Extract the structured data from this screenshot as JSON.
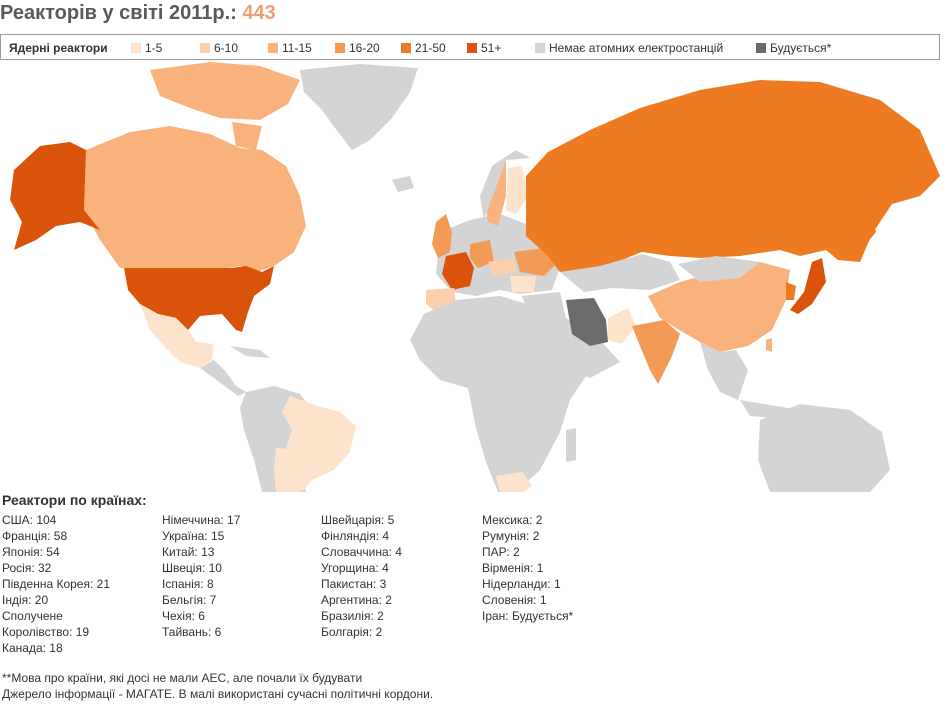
{
  "title": {
    "prefix": "Реакторів у світі 2011р.:",
    "count": "443"
  },
  "legend": {
    "title": "Ядерні реактори",
    "items": [
      {
        "label": "1-5",
        "color": "#fde3cc"
      },
      {
        "label": "6-10",
        "color": "#fcd0ac"
      },
      {
        "label": "11-15",
        "color": "#f9b27c"
      },
      {
        "label": "16-20",
        "color": "#f39a56"
      },
      {
        "label": "21-50",
        "color": "#ee7a22"
      },
      {
        "label": "51+",
        "color": "#d9540a"
      },
      {
        "label": "Немає атомних електростанцій",
        "color": "#d4d4d4"
      },
      {
        "label": "Будується*",
        "color": "#6b6b6b"
      }
    ]
  },
  "countries_heading": "Реактори по країнах:",
  "columns": [
    [
      "США: 104",
      "Франція: 58",
      "Японія: 54",
      "Росія: 32",
      "Південна Корея: 21",
      "Індія: 20",
      "Сполучене",
      "Королівство: 19",
      "Канада: 18"
    ],
    [
      "Німеччина: 17",
      "Україна: 15",
      "Китай: 13",
      "Швеція: 10",
      "Іспанія: 8",
      "Бельгія: 7",
      "Чехія: 6",
      "Тайвань: 6"
    ],
    [
      "Швейцарія: 5",
      "Фінляндія: 4",
      "Словаччина: 4",
      "Угорщина: 4",
      "Пакистан: 3",
      "Аргентина: 2",
      "Бразилія: 2",
      "Болгарія: 2"
    ],
    [
      "Мексика: 2",
      "Румунія: 2",
      "ПАР: 2",
      "Вірменія: 1",
      "Нідерланди: 1",
      "Словенія: 1",
      "Іран: Будується*"
    ]
  ],
  "footnotes": [
    "**Мова про країни, які досі не мали АЕС, але почали їх будувати",
    "Джерело інформації - МАГАТЕ. В малі використані сучасні політичні кордони."
  ],
  "colors": {
    "none": "#d4d4d4",
    "c1": "#fde3cc",
    "c2": "#fcd0ac",
    "c3": "#f9b27c",
    "c4": "#f39a56",
    "c5": "#ee7a22",
    "c6": "#d9540a",
    "building": "#6b6b6b"
  }
}
